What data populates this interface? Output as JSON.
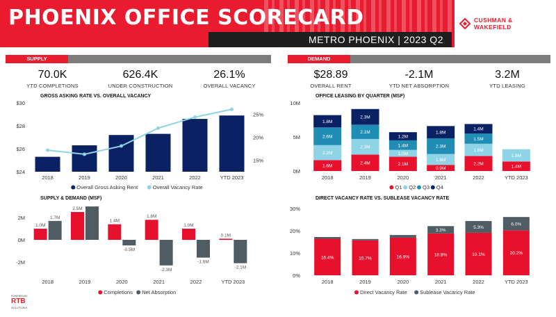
{
  "header": {
    "title": "PHOENIX OFFICE SCORECARD",
    "subtitle": "METRO PHOENIX | 2023 Q2",
    "logo": {
      "line1": "CUSHMAN &",
      "line2": "WAKEFIELD"
    },
    "brand_color": "#ea1b2e"
  },
  "supply": {
    "label": "SUPPLY",
    "kpis": [
      {
        "value": "70.0K",
        "label": "YTD COMPLETIONS"
      },
      {
        "value": "626.4K",
        "label": "UNDER CONSTRUCTION"
      },
      {
        "value": "26.1%",
        "label": "OVERALL VACANCY"
      }
    ]
  },
  "demand": {
    "label": "DEMAND",
    "kpis": [
      {
        "value": "$28.89",
        "label": "OVERALL RENT"
      },
      {
        "value": "-2.1M",
        "label": "YTD NET ABSORPTION"
      },
      {
        "value": "3.2M",
        "label": "YTD LEASING"
      }
    ]
  },
  "footer_badge": {
    "line1": "POWERED BY",
    "line2": "RTB",
    "line3": "SOLUTIONS"
  },
  "chart_data": [
    {
      "id": "rent_vacancy",
      "type": "bar",
      "title": "GROSS ASKING RATE VS. OVERALL VACANCY",
      "categories": [
        "2018",
        "2019",
        "2020",
        "2021",
        "2022",
        "YTD 2023"
      ],
      "series": [
        {
          "name": "Overall Gross Asking Rent",
          "values": [
            25.3,
            26.3,
            27.2,
            27.3,
            28.6,
            28.9
          ],
          "color": "#0a2164",
          "type": "bar",
          "axis": "left"
        },
        {
          "name": "Overall Vacancy Rate",
          "values": [
            17.2,
            16.3,
            18.1,
            22.0,
            24.4,
            26.1
          ],
          "color": "#8fd3e6",
          "type": "line",
          "axis": "right"
        }
      ],
      "y_left": {
        "range": [
          24,
          30
        ],
        "ticks": [
          24,
          26,
          28,
          30
        ],
        "tick_labels": [
          "$24",
          "$26",
          "$28",
          "$30"
        ]
      },
      "y_right": {
        "range": [
          12.5,
          27.5
        ],
        "ticks": [
          15,
          20,
          25
        ],
        "tick_labels": [
          "15%",
          "20%",
          "25%"
        ]
      },
      "legend": "bottom"
    },
    {
      "id": "leasing_quarter",
      "type": "bar",
      "stacked": true,
      "title": "OFFICE LEASING BY QUARTER (MSF)",
      "categories": [
        "2018",
        "2019",
        "2020",
        "2021",
        "2022",
        "YTD 2023"
      ],
      "series": [
        {
          "name": "Q1",
          "values": [
            1.6,
            2.4,
            2.1,
            0.9,
            2.2,
            1.4
          ],
          "labels": [
            "1.6M",
            "2.4M",
            "2.1M",
            "0.9M",
            "2.2M",
            "1.4M"
          ],
          "color": "#e8112d"
        },
        {
          "name": "Q2",
          "values": [
            2.2,
            2.3,
            1.0,
            1.6,
            1.8,
            1.8
          ],
          "labels": [
            "2.2M",
            "2.3M",
            "1.0M",
            "1.6M",
            "1.8M",
            "1.8M"
          ],
          "color": "#8fd3e6"
        },
        {
          "name": "Q3",
          "values": [
            2.6,
            2.1,
            1.4,
            2.3,
            1.5,
            0
          ],
          "labels": [
            "2.6M",
            "2.1M",
            "1.4M",
            "2.3M",
            "1.5M",
            ""
          ],
          "color": "#1f8db4"
        },
        {
          "name": "Q4",
          "values": [
            1.8,
            2.3,
            1.2,
            1.8,
            1.4,
            0
          ],
          "labels": [
            "1.8M",
            "2.3M",
            "1.2M",
            "1.8M",
            "1.4M",
            ""
          ],
          "color": "#0a2164"
        }
      ],
      "y": {
        "range": [
          0,
          10
        ],
        "ticks": [
          0,
          5,
          10
        ],
        "tick_labels": [
          "0M",
          "5M",
          "10M"
        ]
      },
      "legend": "bottom"
    },
    {
      "id": "supply_demand",
      "type": "bar",
      "title": "SUPPLY & DEMAND (MSF)",
      "categories": [
        "2018",
        "2019",
        "2020",
        "2021",
        "2022",
        "YTD 2023"
      ],
      "series": [
        {
          "name": "Completions",
          "values": [
            1.0,
            2.5,
            1.4,
            1.8,
            1.0,
            0.1
          ],
          "labels": [
            "1.0M",
            "2.5M",
            "1.4M",
            "1.8M",
            "1.0M",
            "0.1M"
          ],
          "color": "#e8112d"
        },
        {
          "name": "Net Absorption",
          "values": [
            1.7,
            3.0,
            -0.5,
            -2.3,
            -1.6,
            -2.1
          ],
          "labels": [
            "1.7M",
            "",
            "-0.5M",
            "-2.3M",
            "-1.6M",
            "-2.1M"
          ],
          "color": "#4f5c63"
        }
      ],
      "y": {
        "range": [
          -3,
          3
        ],
        "ticks": [
          -2,
          0,
          2
        ],
        "tick_labels": [
          "-2M",
          "0M",
          "2M"
        ]
      },
      "legend": "bottom"
    },
    {
      "id": "direct_sublease",
      "type": "bar",
      "stacked": true,
      "title": "DIRECT VACANCY RATE VS. SUBLEASE VACANCY RATE",
      "categories": [
        "2018",
        "2019",
        "2020",
        "2021",
        "2022",
        "YTD 2023"
      ],
      "series": [
        {
          "name": "Direct Vacancy Rate",
          "values": [
            16.4,
            15.7,
            16.9,
            18.8,
            19.1,
            20.2
          ],
          "labels": [
            "16.4%",
            "15.7%",
            "16.9%",
            "18.8%",
            "19.1%",
            "20.2%"
          ],
          "color": "#e8112d"
        },
        {
          "name": "Sublease Vacancy Rate",
          "values": [
            0.8,
            0.6,
            1.2,
            3.3,
            5.3,
            6.0
          ],
          "labels": [
            "",
            "",
            "",
            "3.3%",
            "5.3%",
            "6.0%"
          ],
          "color": "#4f5c63"
        }
      ],
      "y": {
        "range": [
          0,
          30
        ],
        "ticks": [
          0,
          10,
          20,
          30
        ],
        "tick_labels": [
          "0%",
          "10%",
          "20%",
          "30%"
        ]
      },
      "legend": "bottom"
    }
  ]
}
